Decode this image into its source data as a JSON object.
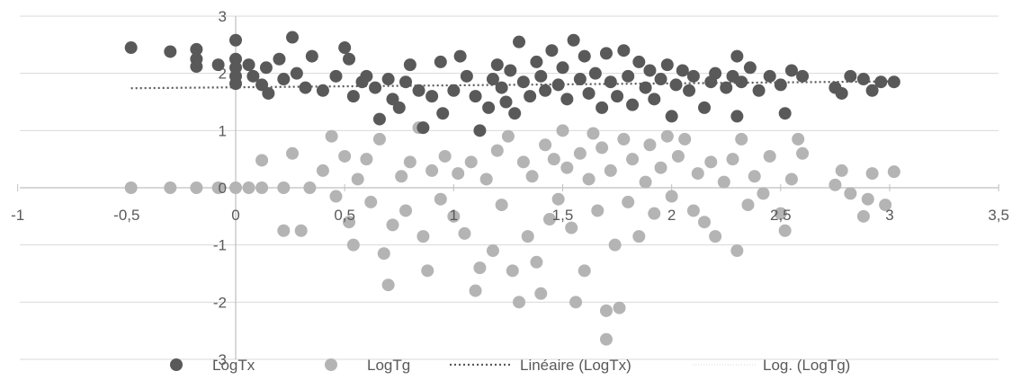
{
  "chart_data": {
    "type": "scatter",
    "title": "",
    "xlabel": "",
    "ylabel": "",
    "xlim": [
      -1,
      3.5
    ],
    "ylim": [
      -3,
      3
    ],
    "x_ticks": [
      "-1",
      "-0,5",
      "0",
      "0,5",
      "1",
      "1,5",
      "2",
      "2,5",
      "3",
      "3,5"
    ],
    "y_ticks": [
      "3",
      "2",
      "1",
      "0",
      "-1",
      "-2",
      "-3"
    ],
    "grid": "horizontal",
    "legend_position": "bottom",
    "colors": {
      "LogTx": "#595959",
      "LogTg": "#b4b4b4",
      "trend": "#595959"
    },
    "series": [
      {
        "name": "LogTx",
        "marker": "circle",
        "points": [
          [
            -0.48,
            2.45
          ],
          [
            -0.3,
            2.38
          ],
          [
            -0.18,
            2.42
          ],
          [
            -0.18,
            2.25
          ],
          [
            -0.18,
            2.12
          ],
          [
            -0.08,
            2.15
          ],
          [
            0,
            2.58
          ],
          [
            0,
            2.25
          ],
          [
            0,
            2.1
          ],
          [
            0,
            1.95
          ],
          [
            0,
            1.82
          ],
          [
            0.06,
            2.15
          ],
          [
            0.08,
            1.95
          ],
          [
            0.12,
            1.8
          ],
          [
            0.14,
            2.1
          ],
          [
            0.15,
            1.65
          ],
          [
            0.2,
            2.25
          ],
          [
            0.22,
            1.9
          ],
          [
            0.26,
            2.63
          ],
          [
            0.28,
            2.0
          ],
          [
            0.32,
            1.75
          ],
          [
            0.35,
            2.3
          ],
          [
            0.4,
            1.7
          ],
          [
            0.46,
            1.95
          ],
          [
            0.5,
            2.45
          ],
          [
            0.52,
            2.25
          ],
          [
            0.54,
            1.6
          ],
          [
            0.58,
            1.85
          ],
          [
            0.6,
            1.95
          ],
          [
            0.64,
            1.75
          ],
          [
            0.66,
            1.2
          ],
          [
            0.7,
            1.9
          ],
          [
            0.72,
            1.55
          ],
          [
            0.75,
            1.4
          ],
          [
            0.78,
            1.85
          ],
          [
            0.8,
            2.15
          ],
          [
            0.84,
            1.7
          ],
          [
            0.86,
            1.05
          ],
          [
            0.9,
            1.6
          ],
          [
            0.94,
            2.2
          ],
          [
            0.95,
            1.3
          ],
          [
            1.0,
            1.7
          ],
          [
            1.03,
            2.3
          ],
          [
            1.06,
            1.95
          ],
          [
            1.1,
            1.6
          ],
          [
            1.12,
            1.0
          ],
          [
            1.16,
            1.4
          ],
          [
            1.18,
            1.9
          ],
          [
            1.2,
            2.15
          ],
          [
            1.22,
            1.75
          ],
          [
            1.24,
            1.5
          ],
          [
            1.26,
            2.05
          ],
          [
            1.28,
            1.3
          ],
          [
            1.3,
            2.55
          ],
          [
            1.32,
            1.85
          ],
          [
            1.35,
            1.6
          ],
          [
            1.38,
            2.2
          ],
          [
            1.4,
            1.95
          ],
          [
            1.42,
            1.7
          ],
          [
            1.45,
            2.4
          ],
          [
            1.48,
            1.8
          ],
          [
            1.5,
            2.1
          ],
          [
            1.52,
            1.55
          ],
          [
            1.55,
            2.58
          ],
          [
            1.58,
            1.9
          ],
          [
            1.6,
            2.3
          ],
          [
            1.62,
            1.65
          ],
          [
            1.65,
            2.0
          ],
          [
            1.68,
            1.4
          ],
          [
            1.7,
            2.35
          ],
          [
            1.72,
            1.85
          ],
          [
            1.75,
            1.6
          ],
          [
            1.78,
            2.4
          ],
          [
            1.8,
            1.95
          ],
          [
            1.82,
            1.45
          ],
          [
            1.85,
            2.2
          ],
          [
            1.88,
            1.75
          ],
          [
            1.9,
            2.05
          ],
          [
            1.92,
            1.55
          ],
          [
            1.95,
            1.9
          ],
          [
            1.98,
            2.15
          ],
          [
            2.0,
            1.25
          ],
          [
            2.02,
            1.8
          ],
          [
            2.05,
            2.05
          ],
          [
            2.08,
            1.7
          ],
          [
            2.1,
            1.95
          ],
          [
            2.15,
            1.4
          ],
          [
            2.18,
            1.85
          ],
          [
            2.2,
            2.0
          ],
          [
            2.25,
            1.75
          ],
          [
            2.28,
            1.95
          ],
          [
            2.3,
            2.3
          ],
          [
            2.3,
            1.25
          ],
          [
            2.32,
            1.85
          ],
          [
            2.36,
            2.1
          ],
          [
            2.4,
            1.7
          ],
          [
            2.45,
            1.95
          ],
          [
            2.5,
            1.8
          ],
          [
            2.52,
            1.3
          ],
          [
            2.55,
            2.05
          ],
          [
            2.6,
            1.95
          ],
          [
            2.75,
            1.75
          ],
          [
            2.78,
            1.65
          ],
          [
            2.82,
            1.95
          ],
          [
            2.88,
            1.9
          ],
          [
            2.92,
            1.7
          ],
          [
            2.96,
            1.85
          ],
          [
            3.02,
            1.85
          ]
        ]
      },
      {
        "name": "LogTg",
        "marker": "circle",
        "points": [
          [
            -0.48,
            0
          ],
          [
            -0.3,
            0
          ],
          [
            -0.18,
            0
          ],
          [
            -0.08,
            0
          ],
          [
            0,
            0
          ],
          [
            0.06,
            0
          ],
          [
            0.12,
            0
          ],
          [
            0.12,
            0.48
          ],
          [
            0.22,
            0
          ],
          [
            0.22,
            -0.75
          ],
          [
            0.26,
            0.6
          ],
          [
            0.3,
            -0.75
          ],
          [
            0.34,
            0
          ],
          [
            0.4,
            0.3
          ],
          [
            0.44,
            0.9
          ],
          [
            0.46,
            -0.15
          ],
          [
            0.5,
            0.55
          ],
          [
            0.52,
            -0.6
          ],
          [
            0.54,
            -1.0
          ],
          [
            0.56,
            0.15
          ],
          [
            0.6,
            0.5
          ],
          [
            0.62,
            -0.25
          ],
          [
            0.66,
            0.85
          ],
          [
            0.68,
            -1.15
          ],
          [
            0.7,
            -1.7
          ],
          [
            0.72,
            -0.65
          ],
          [
            0.76,
            0.2
          ],
          [
            0.78,
            -0.4
          ],
          [
            0.8,
            0.45
          ],
          [
            0.84,
            1.05
          ],
          [
            0.86,
            -0.85
          ],
          [
            0.88,
            -1.45
          ],
          [
            0.9,
            0.3
          ],
          [
            0.94,
            -0.2
          ],
          [
            0.96,
            0.55
          ],
          [
            1.0,
            -0.5
          ],
          [
            1.02,
            0.25
          ],
          [
            1.05,
            -0.8
          ],
          [
            1.08,
            0.45
          ],
          [
            1.1,
            -1.8
          ],
          [
            1.12,
            -1.4
          ],
          [
            1.15,
            0.15
          ],
          [
            1.18,
            -1.1
          ],
          [
            1.2,
            0.65
          ],
          [
            1.22,
            -0.3
          ],
          [
            1.25,
            0.9
          ],
          [
            1.27,
            -1.45
          ],
          [
            1.3,
            -2.0
          ],
          [
            1.32,
            0.45
          ],
          [
            1.34,
            -0.85
          ],
          [
            1.36,
            0.2
          ],
          [
            1.38,
            -1.3
          ],
          [
            1.4,
            -1.85
          ],
          [
            1.42,
            0.75
          ],
          [
            1.44,
            -0.55
          ],
          [
            1.46,
            0.5
          ],
          [
            1.48,
            -0.2
          ],
          [
            1.5,
            1.0
          ],
          [
            1.52,
            0.35
          ],
          [
            1.54,
            -0.7
          ],
          [
            1.56,
            -2.0
          ],
          [
            1.58,
            0.6
          ],
          [
            1.6,
            -1.45
          ],
          [
            1.62,
            0.15
          ],
          [
            1.64,
            0.95
          ],
          [
            1.66,
            -0.4
          ],
          [
            1.68,
            0.7
          ],
          [
            1.7,
            -2.65
          ],
          [
            1.7,
            -2.15
          ],
          [
            1.72,
            0.3
          ],
          [
            1.74,
            -1.0
          ],
          [
            1.76,
            -2.1
          ],
          [
            1.78,
            0.85
          ],
          [
            1.8,
            -0.25
          ],
          [
            1.82,
            0.5
          ],
          [
            1.85,
            -0.85
          ],
          [
            1.88,
            0.1
          ],
          [
            1.9,
            0.75
          ],
          [
            1.92,
            -0.45
          ],
          [
            1.95,
            0.35
          ],
          [
            1.98,
            0.9
          ],
          [
            2.0,
            -0.15
          ],
          [
            2.03,
            0.55
          ],
          [
            2.06,
            0.85
          ],
          [
            2.1,
            -0.4
          ],
          [
            2.12,
            0.25
          ],
          [
            2.15,
            -0.6
          ],
          [
            2.18,
            0.45
          ],
          [
            2.2,
            -0.85
          ],
          [
            2.24,
            0.1
          ],
          [
            2.28,
            0.5
          ],
          [
            2.3,
            -1.1
          ],
          [
            2.32,
            0.85
          ],
          [
            2.35,
            -0.3
          ],
          [
            2.38,
            0.2
          ],
          [
            2.42,
            -0.1
          ],
          [
            2.45,
            0.55
          ],
          [
            2.5,
            -0.45
          ],
          [
            2.52,
            -0.75
          ],
          [
            2.55,
            0.15
          ],
          [
            2.58,
            0.85
          ],
          [
            2.6,
            0.6
          ],
          [
            2.75,
            0.05
          ],
          [
            2.78,
            0.3
          ],
          [
            2.82,
            -0.1
          ],
          [
            2.88,
            -0.5
          ],
          [
            2.9,
            -0.2
          ],
          [
            2.92,
            0.25
          ],
          [
            2.98,
            -0.3
          ],
          [
            3.02,
            0.28
          ]
        ]
      },
      {
        "name": "Linéaire (LogTx)",
        "type": "trendline-linear",
        "style": "dotted",
        "x_range": [
          -0.48,
          3.02
        ],
        "y_range": [
          1.74,
          1.86
        ]
      },
      {
        "name": "Log. (LogTg)",
        "type": "trendline-log",
        "style": "dotted"
      }
    ]
  }
}
